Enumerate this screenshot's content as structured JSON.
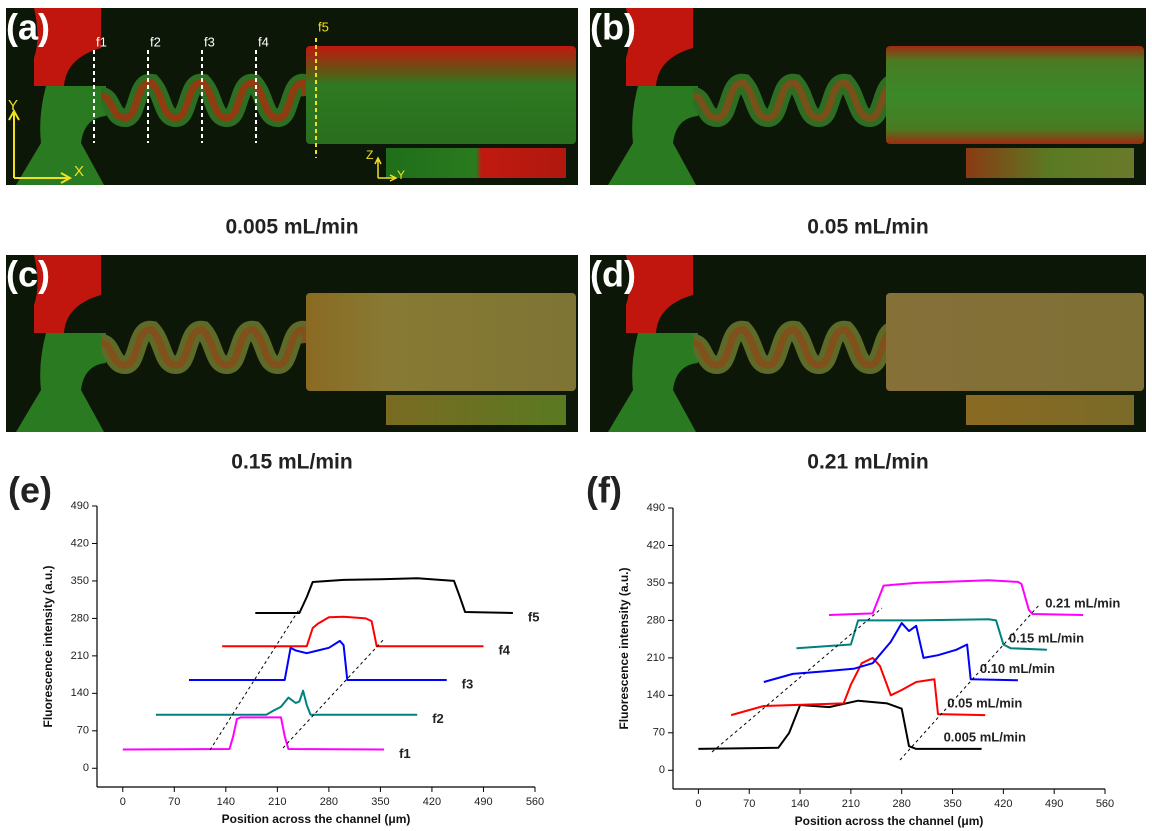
{
  "panels": [
    {
      "label": "(a)",
      "caption": "0.005 mL/min",
      "markers": [
        "f1",
        "f2",
        "f3",
        "f4",
        "f5"
      ],
      "axes": [
        "Y",
        "X",
        "Z",
        "Y"
      ]
    },
    {
      "label": "(b)",
      "caption": "0.05 mL/min"
    },
    {
      "label": "(c)",
      "caption": "0.15 mL/min"
    },
    {
      "label": "(d)",
      "caption": "0.21 mL/min"
    }
  ],
  "chart_data": [
    {
      "type": "line",
      "label": "(e)",
      "x_label": "Position across the channel (μm)",
      "y_label": "Fluorescence intensity (a.u.)",
      "xlim": [
        -35,
        560
      ],
      "ylim": [
        -35,
        490
      ],
      "xticks": [
        0,
        70,
        140,
        210,
        280,
        350,
        420,
        490,
        560
      ],
      "yticks": [
        0,
        70,
        140,
        210,
        280,
        350,
        420,
        490
      ],
      "series": [
        {
          "name": "f1",
          "color": "#ff00ff",
          "x": [
            0,
            145,
            150,
            155,
            160,
            215,
            220,
            225,
            355
          ],
          "values": [
            35,
            36,
            60,
            92,
            95,
            95,
            60,
            36,
            35
          ]
        },
        {
          "name": "f2",
          "color": "#008080",
          "x": [
            45,
            195,
            205,
            215,
            225,
            235,
            240,
            245,
            250,
            255,
            400
          ],
          "values": [
            100,
            100,
            108,
            115,
            132,
            122,
            125,
            145,
            118,
            100,
            100
          ]
        },
        {
          "name": "f3",
          "color": "#0000ff",
          "x": [
            90,
            220,
            228,
            235,
            250,
            265,
            280,
            295,
            300,
            305,
            440
          ],
          "values": [
            165,
            165,
            225,
            220,
            215,
            220,
            225,
            238,
            230,
            165,
            165
          ]
        },
        {
          "name": "f4",
          "color": "#ff0000",
          "x": [
            135,
            250,
            258,
            265,
            280,
            300,
            330,
            338,
            345,
            490
          ],
          "values": [
            228,
            228,
            262,
            270,
            282,
            283,
            280,
            275,
            228,
            228
          ]
        },
        {
          "name": "f5",
          "color": "#000000",
          "x": [
            180,
            240,
            250,
            258,
            300,
            350,
            400,
            450,
            458,
            465,
            530
          ],
          "values": [
            290,
            290,
            320,
            348,
            352,
            353,
            355,
            350,
            320,
            292,
            290
          ]
        }
      ]
    },
    {
      "type": "line",
      "label": "(f)",
      "x_label": "Position across the channel (μm)",
      "y_label": "Fluorescence intensity (a.u.)",
      "xlim": [
        -35,
        560
      ],
      "ylim": [
        -35,
        490
      ],
      "xticks": [
        0,
        70,
        140,
        210,
        280,
        350,
        420,
        490,
        560
      ],
      "yticks": [
        0,
        70,
        140,
        210,
        280,
        350,
        420,
        490
      ],
      "series": [
        {
          "name": "0.005 mL/min",
          "color": "#000000",
          "x": [
            0,
            110,
            125,
            140,
            180,
            220,
            260,
            280,
            290,
            300,
            390
          ],
          "values": [
            40,
            42,
            70,
            122,
            118,
            130,
            125,
            115,
            45,
            40,
            40
          ]
        },
        {
          "name": "0.05 mL/min",
          "color": "#ff0000",
          "x": [
            45,
            90,
            200,
            210,
            225,
            240,
            250,
            265,
            280,
            300,
            325,
            330,
            395
          ],
          "values": [
            103,
            120,
            125,
            160,
            200,
            210,
            195,
            140,
            150,
            165,
            170,
            105,
            103
          ]
        },
        {
          "name": "0.10 mL/min",
          "color": "#0000ff",
          "x": [
            90,
            130,
            175,
            215,
            240,
            265,
            280,
            290,
            300,
            310,
            330,
            355,
            370,
            375,
            440
          ],
          "values": [
            165,
            180,
            185,
            190,
            200,
            240,
            275,
            260,
            270,
            210,
            215,
            225,
            235,
            170,
            168
          ]
        },
        {
          "name": "0.15 mL/min",
          "color": "#008080",
          "x": [
            135,
            210,
            220,
            300,
            400,
            410,
            420,
            430,
            480
          ],
          "values": [
            228,
            235,
            280,
            280,
            282,
            280,
            235,
            228,
            225
          ]
        },
        {
          "name": "0.21 mL/min",
          "color": "#ff00ff",
          "x": [
            180,
            240,
            255,
            300,
            400,
            440,
            445,
            455,
            460,
            530
          ],
          "values": [
            290,
            293,
            345,
            350,
            355,
            352,
            348,
            300,
            292,
            290
          ]
        }
      ]
    }
  ]
}
